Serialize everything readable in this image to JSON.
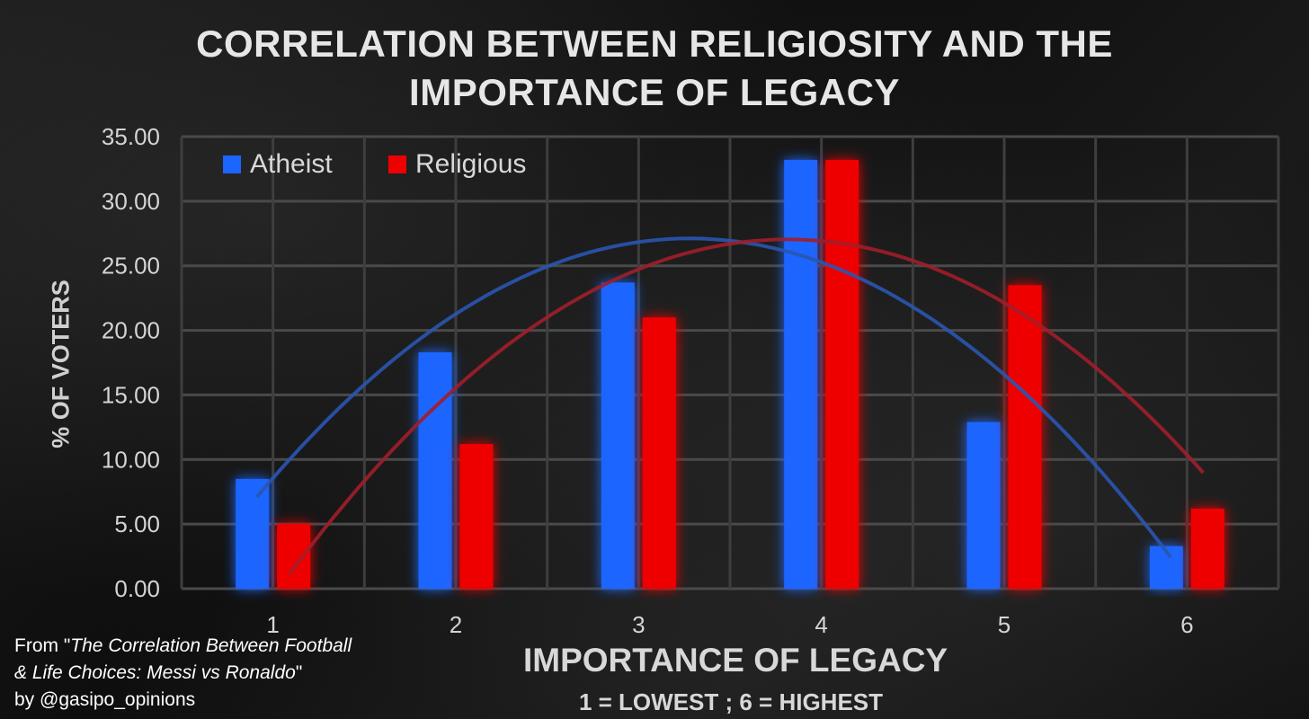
{
  "chart_data": {
    "type": "bar",
    "title_line1": "CORRELATION BETWEEN RELIGIOSITY AND THE",
    "title_line2": "IMPORTANCE OF LEGACY",
    "xlabel": "IMPORTANCE OF LEGACY",
    "xsublabel": "1 = LOWEST ; 6 = HIGHEST",
    "ylabel": "% OF VOTERS",
    "categories": [
      "1",
      "2",
      "3",
      "4",
      "5",
      "6"
    ],
    "ylim": [
      0,
      35
    ],
    "yticks": [
      "0.00",
      "5.00",
      "10.00",
      "15.00",
      "20.00",
      "25.00",
      "30.00",
      "35.00"
    ],
    "grid": true,
    "legend_position": "top-left",
    "series": [
      {
        "name": "Atheist",
        "color": "#1a66ff",
        "values": [
          8.5,
          18.3,
          23.7,
          33.2,
          12.9,
          3.3
        ],
        "trendline": "polynomial-2"
      },
      {
        "name": "Religious",
        "color": "#ee0000",
        "values": [
          5.0,
          11.2,
          21.0,
          33.2,
          23.5,
          6.2
        ],
        "trendline": "polynomial-2"
      }
    ]
  },
  "credit": {
    "line1_prefix": "From \"",
    "line1_italic": "The Correlation Between Football",
    "line2_italic": "& Life Choices: Messi vs Ronaldo",
    "line2_suffix": "\"",
    "line3": "by @gasipo_opinions"
  }
}
